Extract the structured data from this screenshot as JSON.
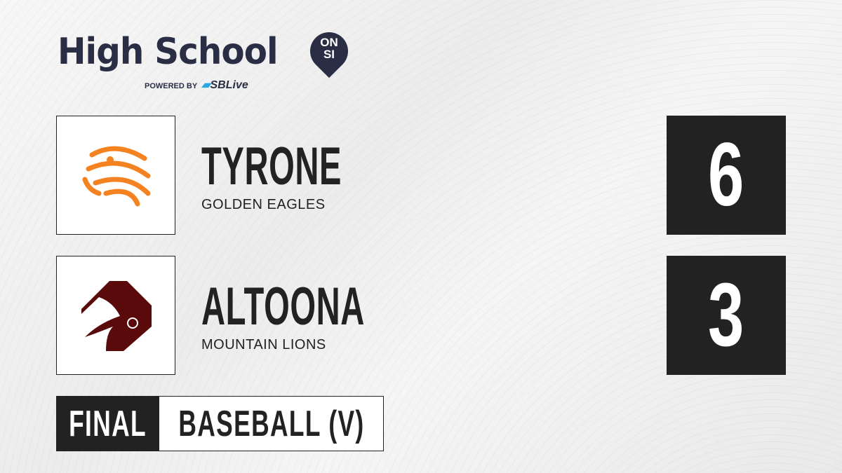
{
  "brand": {
    "title": "High School",
    "badge_line1": "ON",
    "badge_line2": "SI",
    "powered_by": "POWERED BY",
    "partner": "SBLive"
  },
  "teams": [
    {
      "name": "TYRONE",
      "mascot": "GOLDEN EAGLES",
      "score": "6",
      "logo_icon": "eagle-logo",
      "logo_color": "#f58220"
    },
    {
      "name": "ALTOONA",
      "mascot": "MOUNTAIN LIONS",
      "score": "3",
      "logo_icon": "mountain-lion-logo",
      "logo_color": "#5a0a0a"
    }
  ],
  "status": {
    "label": "FINAL",
    "sport": "BASEBALL (V)"
  }
}
